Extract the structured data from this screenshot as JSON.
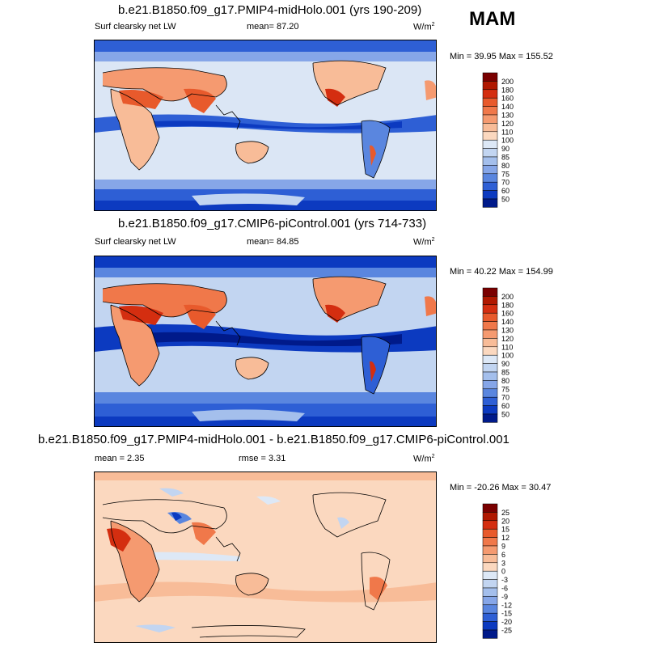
{
  "header": {
    "season": "MAM"
  },
  "panels": [
    {
      "title": "b.e21.B1850.f09_g17.PMIP4-midHolo.001 (yrs 190-209)",
      "left_label": "Surf clearsky net LW",
      "mean_label": "mean=  87.20",
      "rmse_label": "",
      "units": "W/m",
      "units_exp": "2",
      "minmax": "Min = 39.95 Max = 155.52",
      "colorbar": {
        "labels": [
          "200",
          "180",
          "160",
          "140",
          "130",
          "120",
          "110",
          "100",
          "90",
          "85",
          "80",
          "75",
          "70",
          "60",
          "50"
        ],
        "colors": [
          "#7a0000",
          "#b01800",
          "#d42e10",
          "#e85a2c",
          "#f0784a",
          "#f59a70",
          "#f8bc98",
          "#fbd8bf",
          "#dde8f6",
          "#c2d5f1",
          "#a4bfec",
          "#86a6e8",
          "#5a86df",
          "#2e5fd5",
          "#0c3ac0",
          "#001a8a"
        ]
      }
    },
    {
      "title": "b.e21.B1850.f09_g17.CMIP6-piControl.001 (yrs 714-733)",
      "left_label": "Surf clearsky net LW",
      "mean_label": "mean=  84.85",
      "rmse_label": "",
      "units": "W/m",
      "units_exp": "2",
      "minmax": "Min = 40.22 Max = 154.99",
      "colorbar": {
        "labels": [
          "200",
          "180",
          "160",
          "140",
          "130",
          "120",
          "110",
          "100",
          "90",
          "85",
          "80",
          "75",
          "70",
          "60",
          "50"
        ],
        "colors": [
          "#7a0000",
          "#b01800",
          "#d42e10",
          "#e85a2c",
          "#f0784a",
          "#f59a70",
          "#f8bc98",
          "#fbd8bf",
          "#dde8f6",
          "#c2d5f1",
          "#a4bfec",
          "#86a6e8",
          "#5a86df",
          "#2e5fd5",
          "#0c3ac0",
          "#001a8a"
        ]
      }
    },
    {
      "title": "b.e21.B1850.f09_g17.PMIP4-midHolo.001 - b.e21.B1850.f09_g17.CMIP6-piControl.001",
      "left_label": "mean =  2.35",
      "mean_label": "",
      "rmse_label": "rmse =  3.31",
      "units": "W/m",
      "units_exp": "2",
      "minmax": "Min = -20.26 Max =  30.47",
      "colorbar": {
        "labels": [
          "25",
          "20",
          "15",
          "12",
          "9",
          "6",
          "3",
          "0",
          "-3",
          "-6",
          "-9",
          "-12",
          "-15",
          "-20",
          "-25"
        ],
        "colors": [
          "#7a0000",
          "#b01800",
          "#d42e10",
          "#e85a2c",
          "#f0784a",
          "#f59a70",
          "#f8bc98",
          "#fbd8bf",
          "#dde8f6",
          "#c2d5f1",
          "#a4bfec",
          "#86a6e8",
          "#5a86df",
          "#2e5fd5",
          "#0c3ac0",
          "#001a8a"
        ]
      }
    }
  ]
}
